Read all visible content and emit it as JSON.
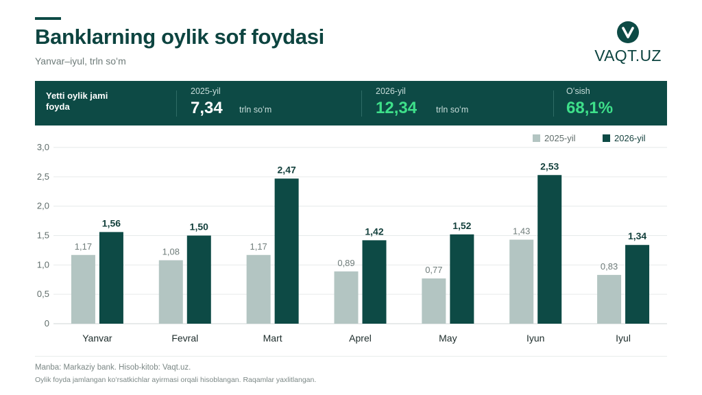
{
  "header": {
    "title": "Banklarning oylik sof foydasi",
    "subtitle": "Yanvar–iyul, trln soʻm"
  },
  "logo": {
    "text": "VAQT.UZ",
    "icon": "v-check-icon"
  },
  "summary": {
    "label": "Yetti oylik jami foyda",
    "y2025_label": "2025-yil",
    "y2025_value": "7,34",
    "y2025_unit": "trln soʻm",
    "y2026_label": "2026-yil",
    "y2026_value": "12,34",
    "y2026_unit": "trln soʻm",
    "growth_label": "Oʻsish",
    "growth_value": "68,1%"
  },
  "colors": {
    "primary": "#0d4a45",
    "light_bar": "#b3c5c2",
    "highlight": "#3ee08a",
    "grid": "#e6eaea"
  },
  "chart_data": {
    "type": "bar",
    "categories": [
      "Yanvar",
      "Fevral",
      "Mart",
      "Aprel",
      "May",
      "Iyun",
      "Iyul"
    ],
    "series": [
      {
        "name": "2025-yil",
        "values": [
          1.17,
          1.08,
          1.17,
          0.89,
          0.77,
          1.43,
          0.83
        ],
        "labels": [
          "1,17",
          "1,08",
          "1,17",
          "0,89",
          "0,77",
          "1,43",
          "0,83"
        ]
      },
      {
        "name": "2026-yil",
        "values": [
          1.56,
          1.5,
          2.47,
          1.42,
          1.52,
          2.53,
          1.34
        ],
        "labels": [
          "1,56",
          "1,50",
          "2,47",
          "1,42",
          "1,52",
          "2,53",
          "1,34"
        ]
      }
    ],
    "ylim": [
      0,
      3
    ],
    "yticks": [
      0,
      0.5,
      1,
      1.5,
      2,
      2.5,
      3
    ],
    "ytick_labels": [
      "0",
      "0,5",
      "1,0",
      "1,5",
      "2,0",
      "2,5",
      "3,0"
    ],
    "grid": true,
    "legend": "top-right"
  },
  "footer": {
    "source": "Manba: Markaziy bank. Hisob-kitob: Vaqt.uz.",
    "note": "Oylik foyda jamlangan koʻrsatkichlar ayirmasi orqali hisoblangan. Raqamlar yaxlitlangan."
  }
}
